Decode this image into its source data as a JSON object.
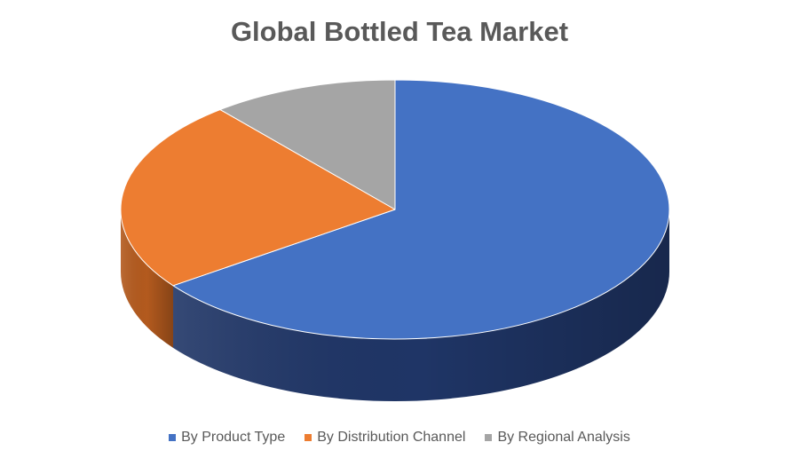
{
  "chart_data": {
    "type": "pie",
    "title": "Global Bottled Tea Market",
    "style": "3d",
    "start_angle_deg": 0,
    "direction": "clockwise",
    "legend_position": "bottom",
    "slices": [
      {
        "label": "By Product Type",
        "value": 65,
        "color": "#4472C4",
        "side_color": "#1F3566"
      },
      {
        "label": "By Distribution Channel",
        "value": 24,
        "color": "#ED7D31",
        "side_color": "#B35A1E"
      },
      {
        "label": "By Regional Analysis",
        "value": 11,
        "color": "#A5A5A5",
        "side_color": "#6E6E6E"
      }
    ]
  }
}
